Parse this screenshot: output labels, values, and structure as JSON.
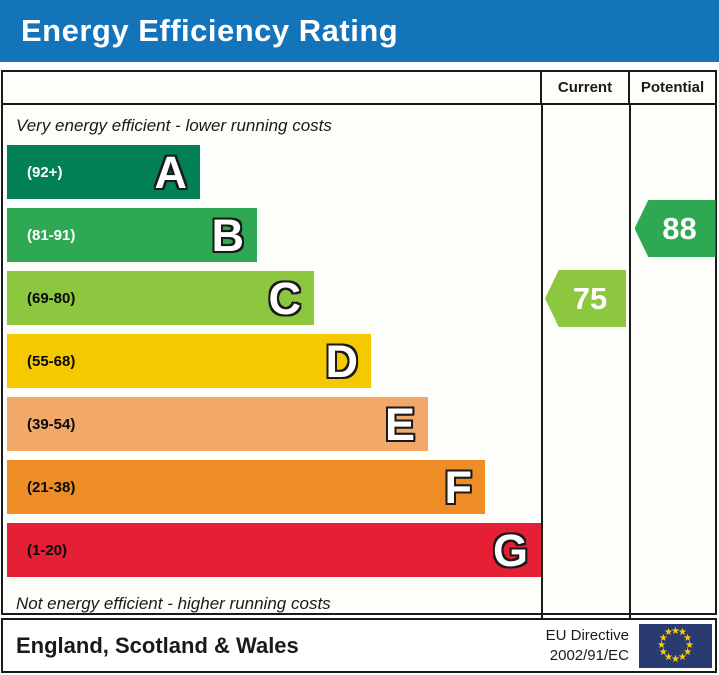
{
  "title": "Energy Efficiency Rating",
  "table": {
    "current_header": "Current",
    "potential_header": "Potential"
  },
  "captions": {
    "top": "Very energy efficient - lower running costs",
    "bottom": "Not energy efficient - higher running costs"
  },
  "chart_data": {
    "type": "bar",
    "title": "Energy Efficiency Rating",
    "categories": [
      "A",
      "B",
      "C",
      "D",
      "E",
      "F",
      "G"
    ],
    "bands": [
      {
        "letter": "A",
        "range": "(92+)",
        "min": 92,
        "max": 100,
        "color": "#008054",
        "range_text_color": "#ffffff"
      },
      {
        "letter": "B",
        "range": "(81-91)",
        "min": 81,
        "max": 91,
        "color": "#2ea853",
        "range_text_color": "#ffffff"
      },
      {
        "letter": "C",
        "range": "(69-80)",
        "min": 69,
        "max": 80,
        "color": "#8dc63f",
        "range_text_color": "#0a0a0a"
      },
      {
        "letter": "D",
        "range": "(55-68)",
        "min": 55,
        "max": 68,
        "color": "#f5c900",
        "range_text_color": "#0a0a0a"
      },
      {
        "letter": "E",
        "range": "(39-54)",
        "min": 39,
        "max": 54,
        "color": "#f1a868",
        "range_text_color": "#0a0a0a"
      },
      {
        "letter": "F",
        "range": "(21-38)",
        "min": 21,
        "max": 38,
        "color": "#ee8d25",
        "range_text_color": "#0a0a0a"
      },
      {
        "letter": "G",
        "range": "(1-20)",
        "min": 1,
        "max": 20,
        "color": "#e52036",
        "range_text_color": "#0a0a0a"
      }
    ],
    "current": {
      "value": 75,
      "band": "C",
      "color": "#8dc63f"
    },
    "potential": {
      "value": 88,
      "band": "B",
      "color": "#2ea853"
    },
    "legend_position": "none",
    "grid": false
  },
  "footer": {
    "region": "England, Scotland & Wales",
    "directive_line1": "EU Directive",
    "directive_line2": "2002/91/EC",
    "star_glyph": "★"
  },
  "theme": {
    "title_bar_blue": "#1374ba",
    "border_black": "#1a1a1a",
    "flag_blue": "#2a3c6f",
    "star_gold": "#ffcc00"
  }
}
